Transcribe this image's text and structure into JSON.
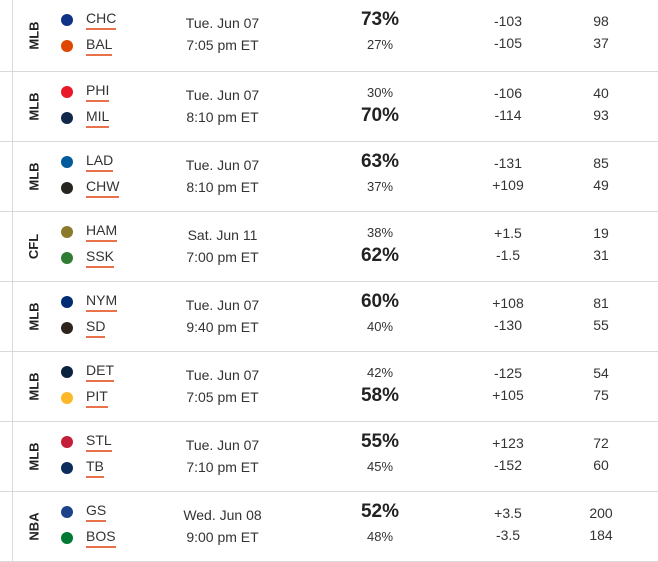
{
  "games": [
    {
      "league": "MLB",
      "date": "Tue. Jun 07",
      "time": "7:05 pm ET",
      "away": {
        "abbr": "CHC",
        "logo": "cubs-logo",
        "color": "#0e3386",
        "pct": "73%",
        "odds": "-103",
        "score": "98"
      },
      "home": {
        "abbr": "BAL",
        "logo": "orioles-logo",
        "color": "#df4601",
        "pct": "27%",
        "odds": "-105",
        "score": "37"
      },
      "fav": "away"
    },
    {
      "league": "MLB",
      "date": "Tue. Jun 07",
      "time": "8:10 pm ET",
      "away": {
        "abbr": "PHI",
        "logo": "phillies-logo",
        "color": "#e81828",
        "pct": "30%",
        "odds": "-106",
        "score": "40"
      },
      "home": {
        "abbr": "MIL",
        "logo": "brewers-logo",
        "color": "#12284b",
        "pct": "70%",
        "odds": "-114",
        "score": "93"
      },
      "fav": "home"
    },
    {
      "league": "MLB",
      "date": "Tue. Jun 07",
      "time": "8:10 pm ET",
      "away": {
        "abbr": "LAD",
        "logo": "dodgers-logo",
        "color": "#005a9c",
        "pct": "63%",
        "odds": "-131",
        "score": "85"
      },
      "home": {
        "abbr": "CHW",
        "logo": "white-sox-logo",
        "color": "#27251f",
        "pct": "37%",
        "odds": "+109",
        "score": "49"
      },
      "fav": "away"
    },
    {
      "league": "CFL",
      "date": "Sat. Jun 11",
      "time": "7:00 pm ET",
      "away": {
        "abbr": "HAM",
        "logo": "tiger-cats-logo",
        "color": "#8a7a2a",
        "pct": "38%",
        "odds": "+1.5",
        "score": "19"
      },
      "home": {
        "abbr": "SSK",
        "logo": "roughriders-logo",
        "color": "#2e7d32",
        "pct": "62%",
        "odds": "-1.5",
        "score": "31"
      },
      "fav": "home"
    },
    {
      "league": "MLB",
      "date": "Tue. Jun 07",
      "time": "9:40 pm ET",
      "away": {
        "abbr": "NYM",
        "logo": "mets-logo",
        "color": "#002d72",
        "pct": "60%",
        "odds": "+108",
        "score": "81"
      },
      "home": {
        "abbr": "SD",
        "logo": "padres-logo",
        "color": "#2f241d",
        "pct": "40%",
        "odds": "-130",
        "score": "55"
      },
      "fav": "away"
    },
    {
      "league": "MLB",
      "date": "Tue. Jun 07",
      "time": "7:05 pm ET",
      "away": {
        "abbr": "DET",
        "logo": "tigers-logo",
        "color": "#0c2340",
        "pct": "42%",
        "odds": "-125",
        "score": "54"
      },
      "home": {
        "abbr": "PIT",
        "logo": "pirates-logo",
        "color": "#fdb827",
        "pct": "58%",
        "odds": "+105",
        "score": "75"
      },
      "fav": "home"
    },
    {
      "league": "MLB",
      "date": "Tue. Jun 07",
      "time": "7:10 pm ET",
      "away": {
        "abbr": "STL",
        "logo": "cardinals-logo",
        "color": "#c41e3a",
        "pct": "55%",
        "odds": "+123",
        "score": "72"
      },
      "home": {
        "abbr": "TB",
        "logo": "rays-logo",
        "color": "#092c5c",
        "pct": "45%",
        "odds": "-152",
        "score": "60"
      },
      "fav": "away"
    },
    {
      "league": "NBA",
      "date": "Wed. Jun 08",
      "time": "9:00 pm ET",
      "away": {
        "abbr": "GS",
        "logo": "warriors-logo",
        "color": "#1d428a",
        "pct": "52%",
        "odds": "+3.5",
        "score": "200"
      },
      "home": {
        "abbr": "BOS",
        "logo": "celtics-logo",
        "color": "#007a33",
        "pct": "48%",
        "odds": "-3.5",
        "score": "184"
      },
      "fav": "away"
    }
  ]
}
